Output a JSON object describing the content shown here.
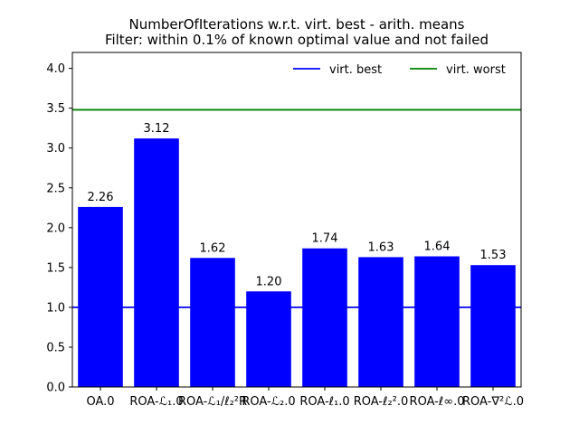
{
  "chart_data": {
    "type": "bar",
    "title": "NumberOfIterations w.r.t. virt. best - arith. means",
    "subtitle": "Filter: within 0.1% of known optimal value and not failed",
    "xlabel": "",
    "ylabel": "",
    "categories": [
      "OA.0",
      "ROA-ℒ₁.0",
      "ROA-ℒ₁/ℓ₂²R",
      "ROA-ℒ₂.0",
      "ROA-ℓ₁.0",
      "ROA-ℓ₂².0",
      "ROA-ℓ∞.0",
      "ROA-∇²ℒ.0"
    ],
    "values": [
      2.26,
      3.12,
      1.62,
      1.2,
      1.74,
      1.63,
      1.64,
      1.53
    ],
    "value_labels": [
      "2.26",
      "3.12",
      "1.62",
      "1.20",
      "1.74",
      "1.63",
      "1.64",
      "1.53"
    ],
    "bar_color": "#0000ff",
    "ylim": [
      0,
      4.2
    ],
    "yticks": [
      0.0,
      0.5,
      1.0,
      1.5,
      2.0,
      2.5,
      3.0,
      3.5,
      4.0
    ],
    "ytick_labels": [
      "0.0",
      "0.5",
      "1.0",
      "1.5",
      "2.0",
      "2.5",
      "3.0",
      "3.5",
      "4.0"
    ],
    "reference_lines": [
      {
        "name": "virt. best",
        "value": 1.0,
        "color": "#0000ff"
      },
      {
        "name": "virt. worst",
        "value": 3.48,
        "color": "#008000"
      }
    ],
    "legend_position": "top-right",
    "grid": false
  }
}
